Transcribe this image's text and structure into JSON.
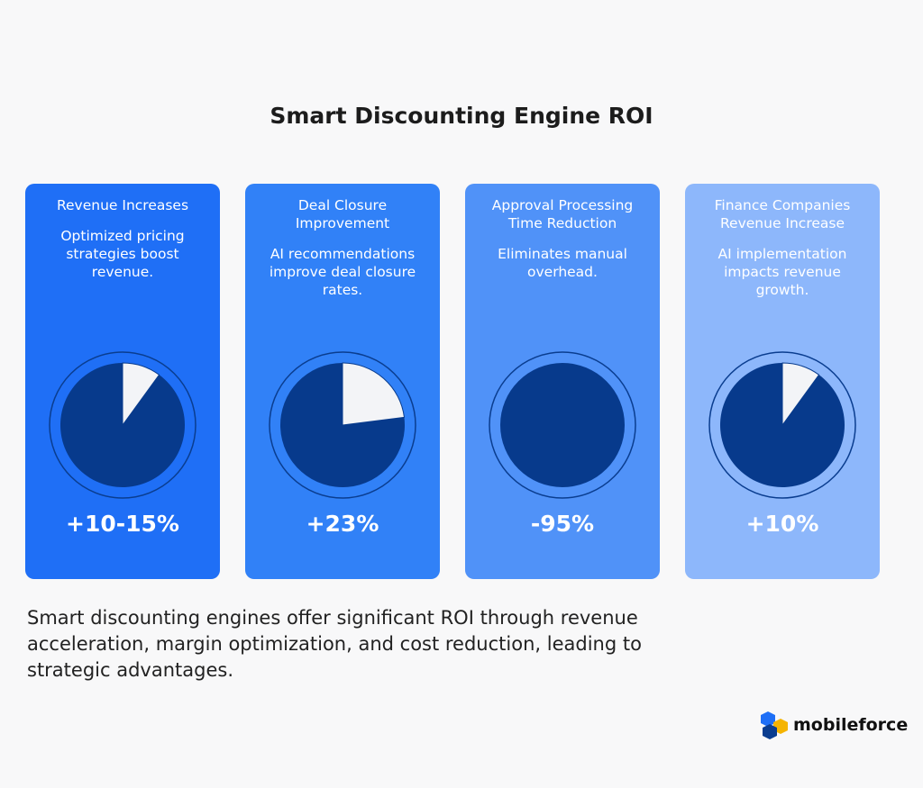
{
  "title": "Smart Discounting Engine ROI",
  "cards": [
    {
      "heading": "Revenue Increases",
      "text": "Optimized pricing strategies boost revenue.",
      "label": "+10-15%",
      "slice": 10,
      "color": "#1f6ff6"
    },
    {
      "heading": "Deal Closure Improvement",
      "text": "AI recommendations improve deal closure rates.",
      "label": "+23%",
      "slice": 23,
      "color": "#3181f7"
    },
    {
      "heading": "Approval Processing Time Reduction",
      "text": "Eliminates manual overhead.",
      "label": "-95%",
      "slice": 0,
      "color": "#5092f8"
    },
    {
      "heading": "Finance Companies Revenue Increase",
      "text": "AI implementation impacts revenue growth.",
      "label": "+10%",
      "slice": 10,
      "color": "#8db7fb"
    }
  ],
  "footer": "Smart discounting engines offer significant ROI through revenue acceleration, margin optimization, and cost reduction, leading to strategic advantages.",
  "logo": "mobileforce"
}
